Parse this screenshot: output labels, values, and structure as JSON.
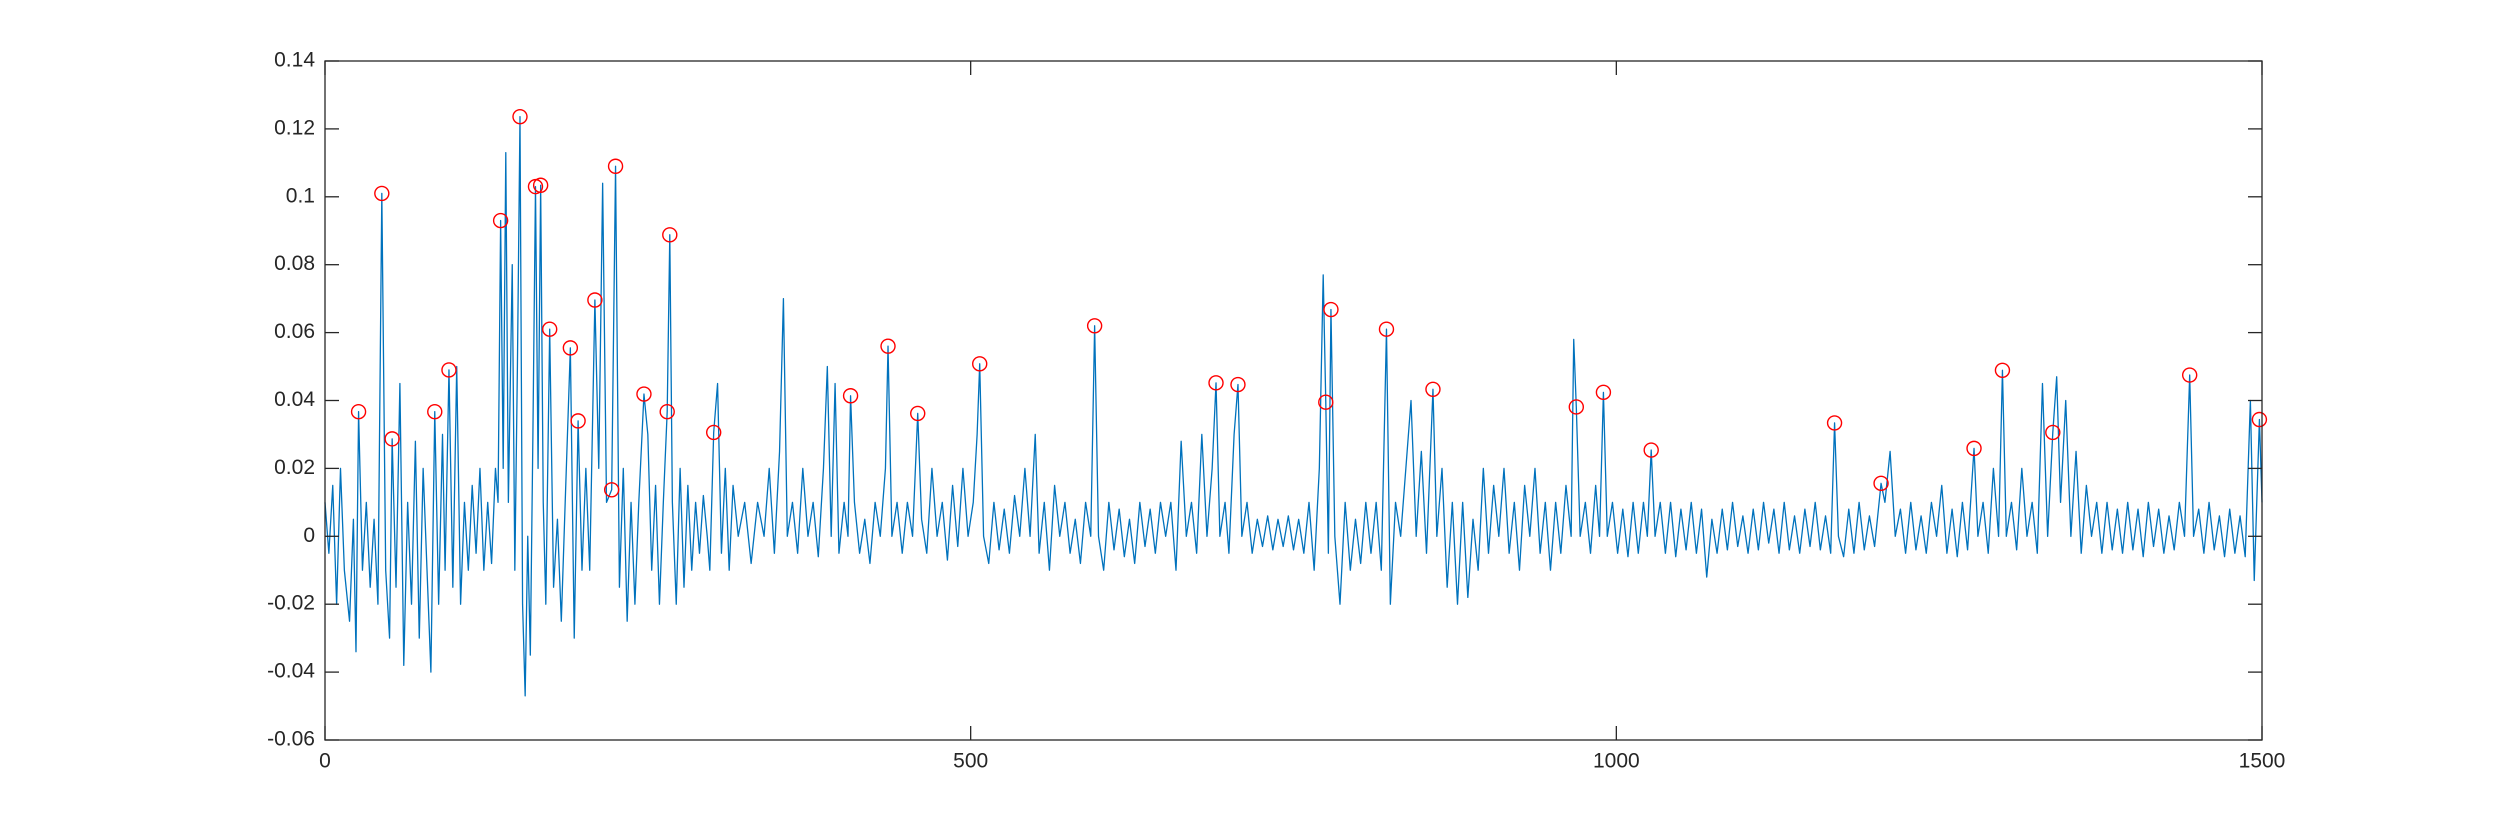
{
  "chart_data": {
    "type": "line",
    "xlim": [
      0,
      1500
    ],
    "xticks": [
      0,
      500,
      1000,
      1500
    ],
    "ylim": [
      -0.06,
      0.14
    ],
    "yticks": [
      -0.06,
      -0.04,
      -0.02,
      0,
      0.02,
      0.04,
      0.06,
      0.08,
      0.1,
      0.12,
      0.14
    ],
    "series": [
      {
        "mode": "line",
        "color": "#0072bd",
        "x": [
          0,
          3,
          6,
          9,
          12,
          15,
          19,
          22,
          24,
          26,
          29,
          32,
          35,
          38,
          41,
          44,
          47,
          50,
          52,
          55,
          58,
          61,
          64,
          67,
          70,
          73,
          76,
          79,
          82,
          85,
          88,
          91,
          93,
          96,
          99,
          102,
          105,
          108,
          111,
          114,
          117,
          120,
          123,
          126,
          129,
          132,
          134,
          136,
          138,
          140,
          142,
          145,
          147,
          149,
          151,
          153,
          155,
          157,
          159,
          161,
          163,
          165,
          167,
          169,
          171,
          174,
          177,
          180,
          183,
          186,
          190,
          193,
          196,
          199,
          202,
          205,
          209,
          212,
          215,
          218,
          222,
          225,
          228,
          231,
          234,
          237,
          240,
          243,
          247,
          250,
          253,
          256,
          259,
          262,
          265,
          267,
          269,
          272,
          275,
          278,
          281,
          284,
          287,
          290,
          293,
          296,
          298,
          301,
          304,
          307,
          310,
          313,
          316,
          320,
          325,
          330,
          335,
          340,
          344,
          348,
          352,
          355,
          358,
          362,
          366,
          370,
          374,
          378,
          382,
          386,
          389,
          392,
          395,
          398,
          402,
          405,
          407,
          410,
          414,
          418,
          422,
          426,
          430,
          434,
          436,
          439,
          443,
          447,
          451,
          455,
          459,
          462,
          466,
          470,
          474,
          478,
          482,
          486,
          490,
          494,
          498,
          502,
          505,
          507,
          510,
          514,
          518,
          522,
          526,
          530,
          534,
          538,
          542,
          546,
          550,
          553,
          557,
          561,
          565,
          569,
          573,
          577,
          581,
          585,
          589,
          593,
          596,
          599,
          603,
          607,
          611,
          615,
          619,
          623,
          627,
          631,
          635,
          639,
          643,
          647,
          651,
          655,
          659,
          663,
          667,
          671,
          675,
          679,
          683,
          687,
          690,
          693,
          697,
          700,
          704,
          707,
          710,
          714,
          718,
          722,
          726,
          730,
          734,
          738,
          742,
          746,
          750,
          754,
          758,
          762,
          766,
          770,
          773,
          775,
          777,
          779,
          782,
          786,
          790,
          794,
          798,
          802,
          806,
          810,
          814,
          818,
          822,
          825,
          829,
          833,
          837,
          841,
          845,
          849,
          853,
          858,
          861,
          865,
          869,
          873,
          877,
          881,
          885,
          889,
          893,
          897,
          901,
          905,
          909,
          913,
          917,
          921,
          925,
          929,
          933,
          937,
          941,
          945,
          949,
          953,
          957,
          961,
          965,
          967,
          969,
          972,
          976,
          980,
          984,
          987,
          990,
          993,
          997,
          1001,
          1005,
          1009,
          1013,
          1017,
          1021,
          1024,
          1027,
          1030,
          1034,
          1038,
          1042,
          1046,
          1050,
          1054,
          1058,
          1062,
          1066,
          1070,
          1074,
          1078,
          1082,
          1086,
          1090,
          1094,
          1098,
          1102,
          1106,
          1110,
          1114,
          1118,
          1122,
          1126,
          1130,
          1134,
          1138,
          1142,
          1146,
          1150,
          1154,
          1158,
          1162,
          1166,
          1169,
          1172,
          1176,
          1180,
          1184,
          1188,
          1192,
          1196,
          1200,
          1205,
          1208,
          1212,
          1216,
          1220,
          1224,
          1228,
          1232,
          1236,
          1240,
          1244,
          1248,
          1252,
          1256,
          1260,
          1264,
          1268,
          1272,
          1277,
          1280,
          1284,
          1288,
          1292,
          1296,
          1299,
          1302,
          1306,
          1310,
          1314,
          1318,
          1322,
          1326,
          1330,
          1334,
          1338,
          1341,
          1344,
          1348,
          1352,
          1356,
          1360,
          1364,
          1368,
          1372,
          1376,
          1380,
          1384,
          1388,
          1392,
          1396,
          1400,
          1404,
          1408,
          1412,
          1416,
          1420,
          1424,
          1428,
          1432,
          1436,
          1440,
          1444,
          1447,
          1451,
          1455,
          1459,
          1463,
          1467,
          1471,
          1475,
          1479,
          1483,
          1487,
          1491,
          1494,
          1498,
          1500
        ],
        "values": [
          0.01,
          -0.005,
          0.015,
          -0.02,
          0.02,
          -0.01,
          -0.025,
          0.005,
          -0.034,
          0.0367,
          -0.01,
          0.01,
          -0.015,
          0.005,
          -0.02,
          0.101,
          -0.01,
          -0.03,
          0.0287,
          -0.015,
          0.045,
          -0.038,
          0.01,
          -0.02,
          0.028,
          -0.03,
          0.02,
          -0.01,
          -0.04,
          0.0367,
          -0.02,
          0.03,
          -0.01,
          0.049,
          -0.015,
          0.05,
          -0.02,
          0.01,
          -0.01,
          0.015,
          -0.005,
          0.02,
          -0.01,
          0.01,
          -0.008,
          0.02,
          0.01,
          0.093,
          0.02,
          0.113,
          0.01,
          0.08,
          -0.01,
          0.05,
          0.1236,
          -0.02,
          -0.047,
          0.0,
          -0.035,
          0.03,
          0.103,
          0.02,
          0.1034,
          0.01,
          -0.02,
          0.061,
          -0.015,
          0.005,
          -0.025,
          0.01,
          0.0555,
          -0.03,
          0.034,
          -0.01,
          0.02,
          -0.01,
          0.0696,
          0.02,
          0.104,
          0.01,
          0.0137,
          0.109,
          -0.015,
          0.02,
          -0.025,
          0.01,
          -0.02,
          0.01,
          0.0419,
          0.03,
          -0.01,
          0.015,
          -0.02,
          0.01,
          0.0367,
          0.0888,
          0.01,
          -0.02,
          0.02,
          -0.015,
          0.015,
          -0.01,
          0.01,
          -0.005,
          0.012,
          0.0,
          -0.01,
          0.0306,
          0.045,
          -0.005,
          0.02,
          -0.01,
          0.015,
          0.0,
          0.01,
          -0.008,
          0.01,
          0.0,
          0.02,
          -0.005,
          0.025,
          0.07,
          0.0,
          0.01,
          -0.005,
          0.02,
          0.0,
          0.01,
          -0.006,
          0.02,
          0.05,
          0.0,
          0.045,
          -0.005,
          0.01,
          0.0,
          0.0414,
          0.01,
          -0.005,
          0.005,
          -0.008,
          0.01,
          0.0,
          0.02,
          0.056,
          0.0,
          0.01,
          -0.005,
          0.01,
          0.0,
          0.0362,
          0.005,
          -0.005,
          0.02,
          0.0,
          0.01,
          -0.007,
          0.015,
          -0.003,
          0.02,
          0.0,
          0.01,
          0.03,
          0.0508,
          0.0,
          -0.008,
          0.01,
          -0.004,
          0.008,
          -0.005,
          0.012,
          0.0,
          0.02,
          0.0,
          0.03,
          -0.005,
          0.01,
          -0.01,
          0.015,
          0.0,
          0.01,
          -0.005,
          0.005,
          -0.008,
          0.01,
          0.0,
          0.062,
          0.0,
          -0.01,
          0.01,
          -0.004,
          0.008,
          -0.006,
          0.005,
          -0.008,
          0.01,
          -0.003,
          0.008,
          -0.005,
          0.01,
          0.0,
          0.01,
          -0.01,
          0.028,
          0.0,
          0.01,
          -0.005,
          0.03,
          0.0,
          0.02,
          0.0452,
          0.0,
          0.01,
          -0.005,
          0.03,
          0.0447,
          0.0,
          0.01,
          -0.005,
          0.005,
          -0.003,
          0.006,
          -0.004,
          0.005,
          -0.003,
          0.006,
          -0.004,
          0.005,
          -0.005,
          0.01,
          -0.01,
          0.02,
          0.077,
          0.0395,
          -0.005,
          0.0668,
          0.0,
          -0.02,
          0.01,
          -0.01,
          0.005,
          -0.008,
          0.01,
          -0.005,
          0.01,
          -0.01,
          0.061,
          -0.02,
          0.01,
          0.0,
          0.02,
          0.04,
          0.0,
          0.025,
          -0.005,
          0.0433,
          0.0,
          0.02,
          -0.015,
          0.01,
          -0.02,
          0.01,
          -0.018,
          0.005,
          -0.01,
          0.02,
          -0.005,
          0.015,
          0.0,
          0.02,
          -0.005,
          0.01,
          -0.01,
          0.015,
          0.0,
          0.02,
          -0.005,
          0.01,
          -0.01,
          0.01,
          -0.005,
          0.015,
          0.0,
          0.058,
          0.0381,
          0.0,
          0.01,
          -0.005,
          0.015,
          0.0,
          0.0424,
          0.0,
          0.01,
          -0.005,
          0.008,
          -0.006,
          0.01,
          -0.005,
          0.01,
          0.0,
          0.0254,
          0.0,
          0.01,
          -0.005,
          0.01,
          -0.006,
          0.008,
          -0.004,
          0.01,
          -0.005,
          0.008,
          -0.012,
          0.005,
          -0.005,
          0.008,
          -0.004,
          0.01,
          -0.003,
          0.006,
          -0.005,
          0.008,
          -0.004,
          0.01,
          -0.002,
          0.008,
          -0.005,
          0.01,
          -0.004,
          0.006,
          -0.005,
          0.008,
          -0.003,
          0.01,
          -0.004,
          0.006,
          -0.005,
          0.0334,
          0.0,
          -0.006,
          0.008,
          -0.005,
          0.01,
          -0.004,
          0.006,
          -0.003,
          0.0156,
          0.01,
          0.025,
          0.0,
          0.008,
          -0.005,
          0.01,
          -0.004,
          0.006,
          -0.005,
          0.01,
          0.0,
          0.015,
          -0.005,
          0.008,
          -0.006,
          0.01,
          -0.004,
          0.0259,
          0.0,
          0.01,
          -0.005,
          0.02,
          0.0,
          0.0489,
          0.0,
          0.01,
          -0.004,
          0.02,
          0.0,
          0.01,
          -0.005,
          0.045,
          0.0,
          0.0306,
          0.047,
          0.01,
          0.04,
          0.0,
          0.025,
          -0.005,
          0.015,
          0.0,
          0.01,
          -0.005,
          0.01,
          -0.004,
          0.008,
          -0.005,
          0.01,
          -0.004,
          0.008,
          -0.006,
          0.01,
          -0.003,
          0.008,
          -0.005,
          0.006,
          -0.004,
          0.01,
          0.0,
          0.0475,
          0.0,
          0.008,
          -0.005,
          0.01,
          -0.004,
          0.006,
          -0.006,
          0.008,
          -0.005,
          0.006,
          -0.006,
          0.04,
          -0.013,
          0.0344,
          0.01
        ]
      },
      {
        "mode": "markers",
        "color": "#ff0000",
        "x": [
          26,
          44,
          52,
          85,
          96,
          136,
          151,
          163,
          167,
          174,
          190,
          196,
          209,
          222,
          225,
          247,
          265,
          267,
          301,
          407,
          436,
          459,
          507,
          596,
          690,
          707,
          775,
          779,
          822,
          858,
          969,
          990,
          1027,
          1169,
          1205,
          1277,
          1299,
          1338,
          1444,
          1498
        ],
        "values": [
          0.0367,
          0.101,
          0.0287,
          0.0367,
          0.049,
          0.093,
          0.1236,
          0.103,
          0.1034,
          0.061,
          0.0555,
          0.034,
          0.0696,
          0.0137,
          0.109,
          0.0419,
          0.0367,
          0.0888,
          0.0306,
          0.0414,
          0.056,
          0.0362,
          0.0508,
          0.062,
          0.0452,
          0.0447,
          0.0395,
          0.0668,
          0.061,
          0.0433,
          0.0381,
          0.0424,
          0.0254,
          0.0334,
          0.0156,
          0.0259,
          0.0489,
          0.0306,
          0.0475,
          0.0344
        ]
      }
    ]
  }
}
